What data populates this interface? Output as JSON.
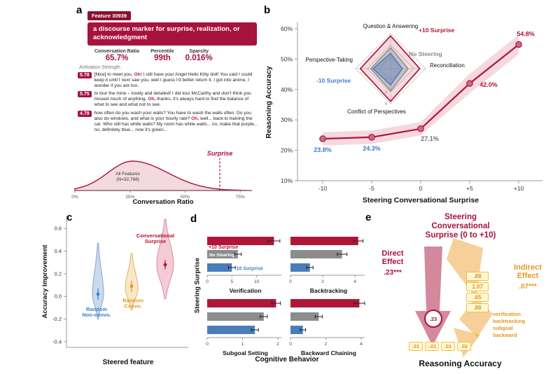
{
  "colors": {
    "crimson": "#A8123E",
    "red": "#B01638",
    "blue": "#3D7EC8",
    "gray": "#808080",
    "orange": "#E8971E",
    "band": "#F2CBD6",
    "bar_red": "#B01638",
    "bar_gray": "#8C8C8C",
    "bar_blue": "#4A7EBB"
  },
  "panel_a": {
    "label": "a",
    "feature_tag": "Feature 30939",
    "feature_desc": "a discourse marker for surprise, realization, or acknowledgment",
    "stats": [
      {
        "label": "Conversation Ratio",
        "value": "65.7%"
      },
      {
        "label": "Percentile",
        "value": "99th"
      },
      {
        "label": "Sparsity",
        "value": "0.016%"
      }
    ],
    "activation_label": "Activation Strength",
    "examples": [
      {
        "score": "5.78",
        "pre": "[Nice] to meet you. ",
        "hl": "Oh!",
        "post": " I still have your Angel Hello Kitty doll! You said I could keep it until I next saw you, well I guess I'd better return it. I got into anime, I wonder if you are too."
      },
      {
        "score": "5.75",
        "pre": "to tour the mine – lovely and detailed! I did tour McCarthy and don't think you missed much of anything. ",
        "hl": "Oh,",
        "post": " thanks, it's always hard to find the balance of what to see and what not to see."
      },
      {
        "score": "4.79",
        "pre": "how often do you wash your walls? You have to wash the walls often. Do you also do windows, and what is your hourly rate? ",
        "hl": "Oh,",
        "post": " well... back to training the cat. Who still has white walls? My room has white walls... no, make that purple... no, definitely blue... now it's green..."
      }
    ]
  },
  "panel_b": {
    "label": "b"
  },
  "panel_c": {
    "label": "c"
  },
  "panel_d": {
    "label": "d"
  },
  "panel_e": {
    "label": "e",
    "title": "Steering\nConversational\nSurprise (0 to +10)",
    "direct_label": "Direct\nEffect",
    "direct_value": ".23***",
    "indirect_label": "Indirect\nEffect",
    "indirect_value": ".07***",
    "path_circle": ".23",
    "top_coefs": [
      ".88",
      "1.07",
      ".65",
      ".88"
    ],
    "mediators": [
      "verification",
      "backtracking",
      "subgoal",
      "backward"
    ],
    "bottom_coefs": [
      ".01",
      "-.01",
      ".01",
      ".02"
    ],
    "outcome": "Reasoning Accuracy"
  },
  "chart_data": [
    {
      "id": "feature-density",
      "type": "area",
      "xlabel": "Conversation Ratio",
      "xlim": [
        0,
        80
      ],
      "xticks": [
        0,
        25,
        50,
        75
      ],
      "xtick_labels": [
        "0%",
        "25%",
        "50%",
        "75%"
      ],
      "curve": {
        "peak_x": 26,
        "sigma_left": 11,
        "sigma_right": 16
      },
      "annotation": "All Features\n(N=32,768)",
      "marker": {
        "x": 65.7,
        "label": "Surprise"
      }
    },
    {
      "id": "steering-accuracy",
      "type": "line",
      "x": [
        -10,
        -5,
        0,
        5,
        10
      ],
      "xtick_labels": [
        "-10",
        "-5",
        "0",
        "+5",
        "+10"
      ],
      "y": [
        23.8,
        24.3,
        27.1,
        42.0,
        54.8
      ],
      "band": [
        2.2,
        2.2,
        2.2,
        3.2,
        3.2
      ],
      "point_labels": [
        "23.8%",
        "24.3%",
        "27.1%",
        "42.0%",
        "54.8%"
      ],
      "point_label_colors": [
        "blue",
        "blue",
        "gray",
        "crimson",
        "crimson"
      ],
      "ylim": [
        10,
        62
      ],
      "yticks": [
        10,
        20,
        30,
        40,
        50,
        60
      ],
      "xlabel": "Steering Conversational Surprise",
      "ylabel": "Reasoning Accuracy"
    },
    {
      "id": "task-radar",
      "type": "radar",
      "axes": [
        "Question & Answering",
        "Reconciliation",
        "Conflict of Perspectives",
        "Perspective-Taking"
      ],
      "rings": [
        2,
        4,
        6
      ],
      "max": 6,
      "series": [
        {
          "name": "+10 Surprise",
          "color": "crimson",
          "values": [
            5.6,
            5.0,
            5.6,
            5.2
          ]
        },
        {
          "name": "No Steering",
          "color": "gray",
          "values": [
            3.6,
            3.0,
            3.8,
            3.4
          ]
        },
        {
          "name": "-10 Surprise",
          "color": "blue",
          "values": [
            2.6,
            2.0,
            2.8,
            3.0
          ]
        }
      ]
    },
    {
      "id": "accuracy-violin",
      "type": "violin",
      "xlabel": "Steered feature",
      "ylabel": "Accuracy Improvement",
      "ylim": [
        -0.45,
        0.7
      ],
      "yticks": [
        -0.4,
        -0.2,
        0.0,
        0.2,
        0.4,
        0.6
      ],
      "groups": [
        {
          "name": "Random\nNon-convo.",
          "color": "blue",
          "mean": 0.02,
          "err": 0.05,
          "mode": 0.02,
          "lo": -0.2,
          "hi": 0.47,
          "label_v": -0.13
        },
        {
          "name": "Random\nConvo.",
          "color": "orange",
          "mean": 0.09,
          "err": 0.05,
          "mode": 0.07,
          "lo": -0.12,
          "hi": 0.38,
          "label_v": -0.05
        },
        {
          "name": "Conversational\nSurprise",
          "color": "crimson",
          "mean": 0.28,
          "err": 0.04,
          "mode": 0.28,
          "lo": -0.02,
          "hi": 0.68,
          "label_v": 0.52
        }
      ]
    },
    {
      "id": "cognitive-behaviors",
      "type": "bar",
      "xlabel": "Cognitive Behavior",
      "ylabel": "Steering Surprise",
      "categories": [
        "+10 Surprise",
        "No Steering",
        "-10 Surprise"
      ],
      "subplots": [
        {
          "title": "Verification",
          "xlim": [
            0,
            15
          ],
          "xticks": [
            0,
            5,
            10
          ],
          "values": [
            13.5,
            6.2,
            5.0
          ],
          "errors": [
            1.2,
            0.7,
            0.7
          ]
        },
        {
          "title": "Backtracking",
          "xlim": [
            0,
            4.6
          ],
          "xticks": [
            0,
            2,
            4
          ],
          "values": [
            4.2,
            3.2,
            1.2
          ],
          "errors": [
            0.3,
            0.3,
            0.2
          ]
        },
        {
          "title": "Subgoal Setting",
          "xlim": [
            0,
            2.1
          ],
          "xticks": [
            0,
            1,
            2
          ],
          "values": [
            1.95,
            1.6,
            1.35
          ],
          "errors": [
            0.12,
            0.1,
            0.1
          ]
        },
        {
          "title": "Backward Chaining",
          "xlim": [
            0,
            4.2
          ],
          "xticks": [
            0,
            2,
            4
          ],
          "values": [
            3.9,
            1.6,
            0.7
          ],
          "errors": [
            0.3,
            0.2,
            0.15
          ]
        }
      ]
    }
  ]
}
